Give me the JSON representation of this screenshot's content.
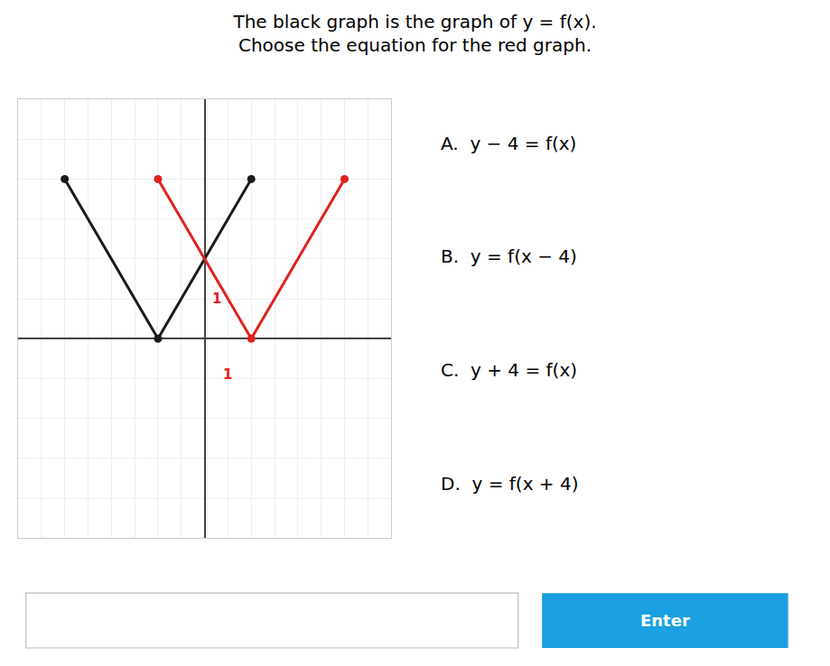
{
  "chart_data": {
    "type": "line",
    "title": "The black graph is the graph of y = f(x).",
    "subtitle": "Choose the equation for the red graph.",
    "series": [
      {
        "x": [
          -6,
          -2,
          2
        ],
        "values": [
          4,
          0,
          4
        ],
        "color": "#1a1a1a",
        "marker": "circle"
      },
      {
        "x": [
          -2,
          2,
          6
        ],
        "values": [
          4,
          0,
          4
        ],
        "color": "#e02020",
        "marker": "circle"
      }
    ],
    "xlim": [
      -8,
      8
    ],
    "ylim": [
      -5,
      6
    ],
    "xticks": [
      -8,
      -7,
      -6,
      -5,
      -4,
      -3,
      -2,
      -1,
      0,
      1,
      2,
      3,
      4,
      5,
      6,
      7,
      8
    ],
    "yticks": [
      -5,
      -4,
      -3,
      -2,
      -1,
      0,
      1,
      2,
      3,
      4,
      5,
      6
    ],
    "grid": true,
    "tick_labels": false,
    "annotations": [
      {
        "text": "1",
        "x": 0.25,
        "y": 1,
        "color": "#e02020"
      },
      {
        "text": "1",
        "x": 1,
        "y": -0.65,
        "color": "#e02020"
      },
      {
        "text": "A.  y − 4 = f(x)"
      },
      {
        "text": "B.  y = f(x − 4)"
      },
      {
        "text": "C.  y + 4 = f(x)"
      },
      {
        "text": "D.  y = f(x + 4)"
      },
      {
        "text": "Enter",
        "color": "#ffffff",
        "background": "#1a9fe0"
      }
    ]
  }
}
